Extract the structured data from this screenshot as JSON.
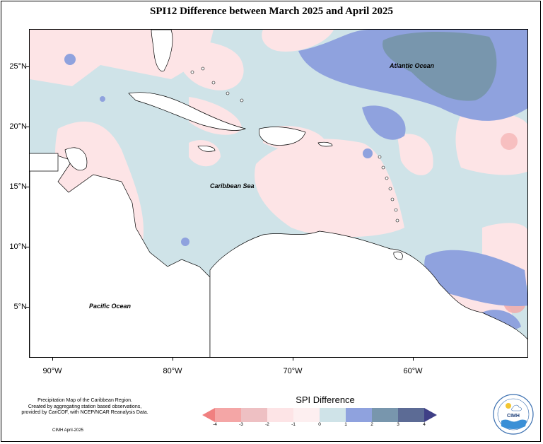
{
  "title": "SPI12 Difference between March 2025 and April 2025",
  "axes": {
    "y_ticks": [
      "25°N",
      "20°N",
      "15°N",
      "10°N",
      "5°N"
    ],
    "x_ticks": [
      "90°W",
      "80°W",
      "70°W",
      "60°W"
    ]
  },
  "map_labels": {
    "atlantic": "Atlantic Ocean",
    "caribbean": "Caribbean Sea",
    "pacific": "Pacific Ocean"
  },
  "credits": {
    "line1": "Precipitation Map of the Caribbean Region.",
    "line2": "Created by aggregating station based observations,",
    "line3": "provided by CariCOF, with NCEP/NCAR Reanalysis Data.",
    "date": "CIMH April-2025"
  },
  "legend": {
    "title": "SPI Difference",
    "labels": [
      "-4",
      "-3",
      "-2",
      "-1",
      "0",
      "1",
      "2",
      "3",
      "4"
    ],
    "colors": [
      "#f08080",
      "#f4a6a6",
      "#eec0c3",
      "#fde4e6",
      "#fdeff0",
      "#cfe3e8",
      "#8fa2de",
      "#7896ad",
      "#5c6b95",
      "#3f3f86"
    ]
  },
  "logo": {
    "text": "CIMH"
  }
}
